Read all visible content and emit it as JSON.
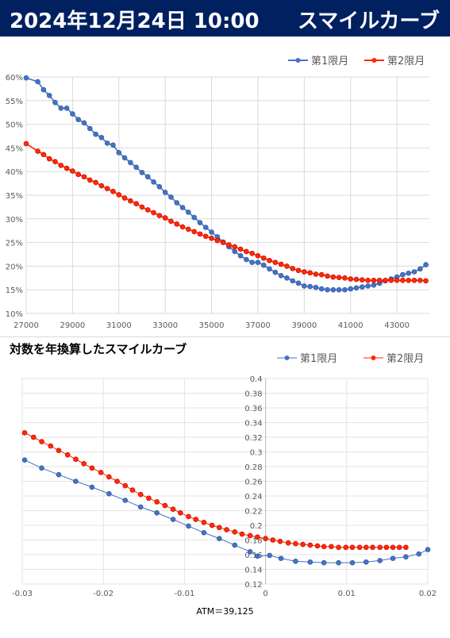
{
  "banner": {
    "date": "2024年12月24日 10:00",
    "title": "スマイルカーブ"
  },
  "colors": {
    "banner_bg": "#002060",
    "series1": "#4472C4",
    "series2": "#FF2A00"
  },
  "chart_data": [
    {
      "type": "line",
      "title": "",
      "xlabel": "",
      "ylabel": "",
      "xlim": [
        27000,
        44400
      ],
      "ylim": [
        10,
        60
      ],
      "xticks": [
        27000,
        29000,
        31000,
        33000,
        35000,
        37000,
        39000,
        41000,
        43000
      ],
      "xtick_labels": [
        "27000",
        "29000",
        "31000",
        "33000",
        "35000",
        "37000",
        "39000",
        "41000",
        "43000"
      ],
      "yticks": [
        10,
        15,
        20,
        25,
        30,
        35,
        40,
        45,
        50,
        55,
        60
      ],
      "ytick_labels": [
        "10%",
        "15%",
        "20%",
        "25%",
        "30%",
        "35%",
        "40%",
        "45%",
        "50%",
        "55%",
        "60%"
      ],
      "grid": true,
      "legend": "top-right",
      "series": [
        {
          "name": "第1限月",
          "x": [
            27000,
            27500,
            27750,
            28000,
            28250,
            28500,
            28750,
            29000,
            29250,
            29500,
            29750,
            30000,
            30250,
            30500,
            30750,
            31000,
            31250,
            31500,
            31750,
            32000,
            32250,
            32500,
            32750,
            33000,
            33250,
            33500,
            33750,
            34000,
            34250,
            34500,
            34750,
            35000,
            35250,
            35500,
            35750,
            36000,
            36250,
            36500,
            36750,
            37000,
            37250,
            37500,
            37750,
            38000,
            38250,
            38500,
            38750,
            39000,
            39250,
            39500,
            39750,
            40000,
            40250,
            40500,
            40750,
            41000,
            41250,
            41500,
            41750,
            42000,
            42250,
            42500,
            42750,
            43000,
            43250,
            43500,
            43750,
            44000,
            44250
          ],
          "y": [
            59.8,
            59.0,
            57.3,
            56.1,
            54.6,
            53.4,
            53.4,
            52.2,
            51.0,
            50.3,
            49.1,
            47.9,
            47.2,
            46.0,
            45.6,
            44.0,
            42.9,
            41.9,
            40.9,
            39.8,
            38.9,
            37.8,
            36.8,
            35.6,
            34.6,
            33.4,
            32.4,
            31.4,
            30.3,
            29.2,
            28.2,
            27.2,
            26.2,
            25.1,
            24.1,
            23.1,
            22.2,
            21.4,
            20.8,
            20.8,
            20.2,
            19.4,
            18.7,
            18.0,
            17.5,
            16.9,
            16.4,
            15.8,
            15.7,
            15.5,
            15.2,
            15.0,
            15.0,
            15.0,
            15.0,
            15.2,
            15.4,
            15.6,
            15.8,
            16.0,
            16.4,
            16.9,
            17.3,
            17.7,
            18.2,
            18.5,
            18.8,
            19.4,
            20.3
          ]
        },
        {
          "name": "第2限月",
          "x": [
            27000,
            27500,
            27750,
            28000,
            28250,
            28500,
            28750,
            29000,
            29250,
            29500,
            29750,
            30000,
            30250,
            30500,
            30750,
            31000,
            31250,
            31500,
            31750,
            32000,
            32250,
            32500,
            32750,
            33000,
            33250,
            33500,
            33750,
            34000,
            34250,
            34500,
            34750,
            35000,
            35250,
            35500,
            35750,
            36000,
            36250,
            36500,
            36750,
            37000,
            37250,
            37500,
            37750,
            38000,
            38250,
            38500,
            38750,
            39000,
            39250,
            39500,
            39750,
            40000,
            40250,
            40500,
            40750,
            41000,
            41250,
            41500,
            41750,
            42000,
            42250,
            42500,
            42750,
            43000,
            43250,
            43500,
            43750,
            44000,
            44250
          ],
          "y": [
            45.9,
            44.3,
            43.6,
            42.7,
            42.1,
            41.3,
            40.7,
            40.1,
            39.4,
            38.9,
            38.2,
            37.7,
            37.0,
            36.4,
            35.8,
            35.1,
            34.4,
            33.8,
            33.2,
            32.5,
            31.9,
            31.3,
            30.7,
            30.2,
            29.5,
            28.9,
            28.3,
            27.8,
            27.3,
            26.8,
            26.3,
            25.9,
            25.4,
            25.0,
            24.5,
            24.1,
            23.6,
            23.1,
            22.7,
            22.2,
            21.7,
            21.2,
            20.8,
            20.4,
            20.0,
            19.5,
            19.1,
            18.8,
            18.6,
            18.3,
            18.2,
            17.9,
            17.7,
            17.6,
            17.5,
            17.3,
            17.2,
            17.1,
            17.0,
            17.0,
            17.0,
            17.0,
            17.0,
            17.0,
            17.0,
            17.0,
            17.0,
            17.0,
            16.9
          ]
        }
      ]
    },
    {
      "type": "line",
      "title": "対数を年換算したスマイルカーブ",
      "xlabel": "ATM＝39,125",
      "ylabel": "",
      "xlim": [
        -0.03,
        0.02
      ],
      "ylim": [
        0.12,
        0.4
      ],
      "xticks": [
        -0.03,
        -0.02,
        -0.01,
        0,
        0.01,
        0.02
      ],
      "xtick_labels": [
        "-0.03",
        "-0.02",
        "-0.01",
        "0",
        "0.01",
        "0.02"
      ],
      "yticks": [
        0.12,
        0.14,
        0.16,
        0.18,
        0.2,
        0.22,
        0.24,
        0.26,
        0.28,
        0.3,
        0.32,
        0.34,
        0.36,
        0.38,
        0.4
      ],
      "ytick_labels": [
        "0.12",
        "0.14",
        "0.16",
        "0.18",
        "0.2",
        "0.22",
        "0.24",
        "0.26",
        "0.28",
        "0.3",
        "0.32",
        "0.34",
        "0.36",
        "0.38",
        "0.4"
      ],
      "grid": true,
      "legend": "top-right",
      "series": [
        {
          "name": "第1限月",
          "x": [
            -0.0297,
            -0.0276,
            -0.0255,
            -0.0234,
            -0.0214,
            -0.0193,
            -0.0173,
            -0.0154,
            -0.0134,
            -0.0114,
            -0.0095,
            -0.0076,
            -0.0057,
            -0.0038,
            -0.0019,
            -0.001,
            0.0005,
            0.0019,
            0.0037,
            0.0055,
            0.0072,
            0.009,
            0.0107,
            0.0124,
            0.0141,
            0.0157,
            0.0173,
            0.0189,
            0.02
          ],
          "y": [
            0.289,
            0.278,
            0.269,
            0.26,
            0.252,
            0.243,
            0.234,
            0.225,
            0.217,
            0.208,
            0.199,
            0.19,
            0.182,
            0.173,
            0.164,
            0.158,
            0.159,
            0.155,
            0.151,
            0.15,
            0.149,
            0.149,
            0.149,
            0.15,
            0.152,
            0.155,
            0.157,
            0.161,
            0.167
          ]
        },
        {
          "name": "第2限月",
          "x": [
            -0.0297,
            -0.0286,
            -0.0276,
            -0.0265,
            -0.0255,
            -0.0244,
            -0.0234,
            -0.0224,
            -0.0214,
            -0.0203,
            -0.0193,
            -0.0183,
            -0.0173,
            -0.0164,
            -0.0154,
            -0.0144,
            -0.0134,
            -0.0124,
            -0.0114,
            -0.0105,
            -0.0095,
            -0.0086,
            -0.0076,
            -0.0066,
            -0.0057,
            -0.0048,
            -0.0038,
            -0.0029,
            -0.0019,
            -0.001,
            0.0,
            0.0009,
            0.0018,
            0.0028,
            0.0037,
            0.0046,
            0.0055,
            0.0064,
            0.0072,
            0.0081,
            0.009,
            0.0099,
            0.0107,
            0.0116,
            0.0124,
            0.0132,
            0.0141,
            0.0149,
            0.0157,
            0.0165,
            0.0173
          ],
          "y": [
            0.326,
            0.32,
            0.314,
            0.308,
            0.302,
            0.296,
            0.29,
            0.284,
            0.278,
            0.272,
            0.266,
            0.26,
            0.254,
            0.248,
            0.242,
            0.237,
            0.232,
            0.227,
            0.222,
            0.217,
            0.212,
            0.208,
            0.204,
            0.2,
            0.197,
            0.194,
            0.191,
            0.188,
            0.186,
            0.184,
            0.182,
            0.18,
            0.178,
            0.176,
            0.175,
            0.174,
            0.173,
            0.172,
            0.171,
            0.171,
            0.17,
            0.17,
            0.17,
            0.17,
            0.17,
            0.17,
            0.17,
            0.17,
            0.17,
            0.17,
            0.17
          ]
        }
      ]
    }
  ]
}
